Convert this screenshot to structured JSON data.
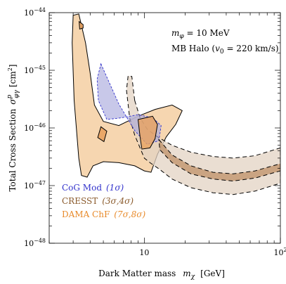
{
  "chart_data": {
    "type": "area",
    "xlabel": "Dark Matter mass",
    "xlabel_symbol": "m",
    "xlabel_symbol_sub": "χ",
    "xlabel_unit": "[GeV]",
    "ylabel": "Total Cross Section",
    "ylabel_symbol": "σ",
    "ylabel_symbol_sup": "p",
    "ylabel_symbol_sub": "φγ",
    "ylabel_unit": "[cm",
    "ylabel_unit_sup": "2",
    "ylabel_unit_close": "]",
    "x_scale": "log",
    "y_scale": "log",
    "xlim": [
      2,
      100
    ],
    "ylim": [
      1e-48,
      1e-44
    ],
    "x_ticks": [
      {
        "value": 10,
        "base": "10",
        "exp": ""
      },
      {
        "value": 100,
        "base": "10",
        "exp": "2"
      }
    ],
    "y_ticks": [
      {
        "value": 1e-44,
        "base": "10",
        "exp": "−44"
      },
      {
        "value": 1e-45,
        "base": "10",
        "exp": "−45"
      },
      {
        "value": 1e-46,
        "base": "10",
        "exp": "−46"
      },
      {
        "value": 1e-47,
        "base": "10",
        "exp": "−47"
      },
      {
        "value": 1e-48,
        "base": "10",
        "exp": "−48"
      }
    ],
    "annotations": [
      {
        "symbol": "m",
        "sub": "φ",
        "rest": " = 10 MeV"
      },
      {
        "text": "MB Halo (",
        "symbol": "v",
        "sub": "0",
        "rest": " = 220 km/s)"
      }
    ],
    "legend_position": "bottom-left",
    "series": [
      {
        "name": "CoG Mod",
        "sigma": "(1σ)",
        "color": "#3333cc",
        "fill": "#aaaadd",
        "region": [
          [
            4.8,
            1.3e-45
          ],
          [
            6.5,
            2.6e-46
          ],
          [
            8.5,
            9e-47
          ],
          [
            10.5,
            5.2e-47
          ],
          [
            12.8,
            6e-47
          ],
          [
            13.3,
            1.1e-46
          ],
          [
            11.5,
            1.5e-46
          ],
          [
            9.0,
            1.7e-46
          ],
          [
            6.8,
            1.5e-46
          ],
          [
            5.3,
            1.4e-46
          ],
          [
            4.6,
            3e-46
          ],
          [
            4.5,
            7e-46
          ]
        ]
      },
      {
        "name": "CRESST",
        "sigma": "(3σ,4σ)",
        "color": "#8a5a2b",
        "fill_outer": "#e3d3c3",
        "fill_inner": "#c49a74",
        "outer_region": [
          [
            8.5,
            3e-46
          ],
          [
            9.3,
            1.5e-46
          ],
          [
            10.5,
            9.5e-47
          ],
          [
            12.5,
            7e-47
          ],
          [
            16,
            5e-47
          ],
          [
            22,
            3.8e-47
          ],
          [
            32,
            3.2e-47
          ],
          [
            45,
            3e-47
          ],
          [
            65,
            3.3e-47
          ],
          [
            100,
            4.5e-47
          ],
          [
            100,
            1.1e-47
          ],
          [
            65,
            8e-48
          ],
          [
            45,
            7e-48
          ],
          [
            32,
            7.5e-48
          ],
          [
            22,
            9.2e-48
          ],
          [
            16,
            1.3e-47
          ],
          [
            13,
            1.9e-47
          ],
          [
            11,
            2.5e-47
          ],
          [
            10,
            3e-47
          ],
          [
            9.3,
            4.5e-47
          ],
          [
            8.5,
            7.5e-47
          ],
          [
            7.8,
            1.5e-46
          ],
          [
            7.4,
            4.5e-46
          ],
          [
            7.6,
            8e-46
          ],
          [
            8.1,
            7.8e-46
          ]
        ],
        "inner_region": [
          [
            12.8,
            6.3e-47
          ],
          [
            16,
            3.4e-47
          ],
          [
            22,
            2.2e-47
          ],
          [
            32,
            1.7e-47
          ],
          [
            45,
            1.6e-47
          ],
          [
            65,
            1.8e-47
          ],
          [
            100,
            2.4e-47
          ],
          [
            100,
            1.8e-47
          ],
          [
            65,
            1.35e-47
          ],
          [
            45,
            1.2e-47
          ],
          [
            32,
            1.3e-47
          ],
          [
            22,
            1.6e-47
          ],
          [
            16,
            2.5e-47
          ],
          [
            13,
            4.2e-47
          ]
        ]
      },
      {
        "name": "DAMA ChF",
        "sigma": "(7σ,8σ)",
        "color": "#e88a2a",
        "fill_outer": "#f5cfa2",
        "fill_inner": "#e9a25f",
        "outer_region": [
          [
            3.3,
            9.5e-45
          ],
          [
            3.7,
            3e-45
          ],
          [
            4.0,
            9e-46
          ],
          [
            4.3,
            2.5e-46
          ],
          [
            5.0,
            1.3e-46
          ],
          [
            6.5,
            1.1e-46
          ],
          [
            9.0,
            1.6e-46
          ],
          [
            12,
            2.1e-46
          ],
          [
            16,
            2.5e-46
          ],
          [
            19,
            2e-46
          ],
          [
            17,
            1.15e-46
          ],
          [
            14.5,
            7e-47
          ],
          [
            12.5,
            3.5e-47
          ],
          [
            11.2,
            1.7e-47
          ],
          [
            10,
            1.8e-47
          ],
          [
            8.5,
            2.2e-47
          ],
          [
            6.5,
            2.5e-47
          ],
          [
            5.0,
            2.6e-47
          ],
          [
            4.2,
            2.2e-47
          ],
          [
            3.8,
            1.4e-47
          ],
          [
            3.45,
            1.5e-47
          ],
          [
            3.3,
            3e-47
          ],
          [
            3.05,
            3e-46
          ],
          [
            2.95,
            3e-45
          ],
          [
            3.0,
            9e-45
          ]
        ],
        "inner_region": [
          [
            9.0,
            1.4e-46
          ],
          [
            11.5,
            1.6e-46
          ],
          [
            12.5,
            1.15e-46
          ],
          [
            12.0,
            6.5e-47
          ],
          [
            11.0,
            4.5e-47
          ],
          [
            9.6,
            4.3e-47
          ],
          [
            9.3,
            7e-47
          ]
        ],
        "islands": [
          [
            [
              3.32,
              7e-45
            ],
            [
              3.55,
              6.2e-45
            ],
            [
              3.55,
              5.4e-45
            ],
            [
              3.35,
              5.2e-45
            ]
          ],
          [
            [
              4.8,
              1.05e-46
            ],
            [
              5.3,
              8.8e-47
            ],
            [
              5.05,
              5.8e-47
            ],
            [
              4.55,
              6.8e-47
            ]
          ]
        ]
      }
    ]
  }
}
